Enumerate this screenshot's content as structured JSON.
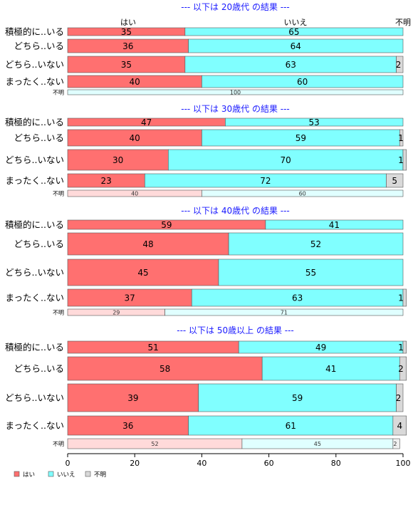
{
  "chart_data": {
    "type": "bar",
    "orientation": "horizontal",
    "stacked": "percent",
    "xlim": [
      0,
      100
    ],
    "xticks": [
      "0",
      "20",
      "40",
      "60",
      "80",
      "100"
    ],
    "column_headers": [
      "はい",
      "いいえ",
      "不明"
    ],
    "legend": {
      "position": "bottom-left",
      "entries": [
        {
          "name": "はい",
          "color": "#ff7070"
        },
        {
          "name": "いいえ",
          "color": "#80ffff"
        },
        {
          "name": "不明",
          "color": "#d9d9d9"
        }
      ]
    },
    "colors": {
      "yes": "#ff7070",
      "no": "#80ffff",
      "unknown": "#d9d9d9",
      "yes_light": "#ffdada",
      "no_light": "#e0ffff",
      "unknown_light": "#f0f0f0",
      "title": "#1a1aff"
    },
    "sections": [
      {
        "title": "--- 以下は 20歳代 の結果 ---",
        "rows": [
          {
            "label": "積極的に..いる",
            "values": [
              35,
              65,
              0
            ],
            "labels": [
              "35",
              "65",
              ""
            ]
          },
          {
            "label": "どちら..いる",
            "values": [
              36,
              64,
              0
            ],
            "labels": [
              "36",
              "64",
              ""
            ]
          },
          {
            "label": "どちら..いない",
            "values": [
              35,
              63,
              2
            ],
            "labels": [
              "35",
              "63",
              "2"
            ]
          },
          {
            "label": "まったく..ない",
            "values": [
              40,
              60,
              0
            ],
            "labels": [
              "40",
              "60",
              ""
            ]
          }
        ],
        "unknown_row": {
          "label": "不明",
          "values": [
            0,
            100,
            0
          ],
          "labels": [
            "",
            "100",
            ""
          ]
        }
      },
      {
        "title": "--- 以下は 30歳代 の結果 ---",
        "rows": [
          {
            "label": "積極的に..いる",
            "values": [
              47,
              53,
              0
            ],
            "labels": [
              "47",
              "53",
              ""
            ]
          },
          {
            "label": "どちら..いる",
            "values": [
              40,
              59,
              1
            ],
            "labels": [
              "40",
              "59",
              "1"
            ]
          },
          {
            "label": "どちら..いない",
            "values": [
              30,
              70,
              1
            ],
            "labels": [
              "30",
              "70",
              "1"
            ]
          },
          {
            "label": "まったく..ない",
            "values": [
              23,
              72,
              5
            ],
            "labels": [
              "23",
              "72",
              "5"
            ]
          }
        ],
        "unknown_row": {
          "label": "不明",
          "values": [
            40,
            60,
            0
          ],
          "labels": [
            "40",
            "60",
            ""
          ]
        }
      },
      {
        "title": "--- 以下は 40歳代 の結果 ---",
        "rows": [
          {
            "label": "積極的に..いる",
            "values": [
              59,
              41,
              0
            ],
            "labels": [
              "59",
              "41",
              ""
            ]
          },
          {
            "label": "どちら..いる",
            "values": [
              48,
              52,
              0
            ],
            "labels": [
              "48",
              "52",
              ""
            ]
          },
          {
            "label": "どちら..いない",
            "values": [
              45,
              55,
              0
            ],
            "labels": [
              "45",
              "55",
              ""
            ]
          },
          {
            "label": "まったく..ない",
            "values": [
              37,
              63,
              1
            ],
            "labels": [
              "37",
              "63",
              "1"
            ]
          }
        ],
        "unknown_row": {
          "label": "不明",
          "values": [
            29,
            71,
            0
          ],
          "labels": [
            "29",
            "71",
            ""
          ]
        }
      },
      {
        "title": "--- 以下は 50歳以上 の結果 ---",
        "rows": [
          {
            "label": "積極的に..いる",
            "values": [
              51,
              49,
              1
            ],
            "labels": [
              "51",
              "49",
              "1"
            ]
          },
          {
            "label": "どちら..いる",
            "values": [
              58,
              41,
              2
            ],
            "labels": [
              "58",
              "41",
              "2"
            ]
          },
          {
            "label": "どちら..いない",
            "values": [
              39,
              59,
              2
            ],
            "labels": [
              "39",
              "59",
              "2"
            ]
          },
          {
            "label": "まったく..ない",
            "values": [
              36,
              61,
              4
            ],
            "labels": [
              "36",
              "61",
              "4"
            ]
          }
        ],
        "unknown_row": {
          "label": "不明",
          "values": [
            52,
            45,
            2
          ],
          "labels": [
            "52",
            "45",
            "2"
          ]
        }
      }
    ]
  }
}
